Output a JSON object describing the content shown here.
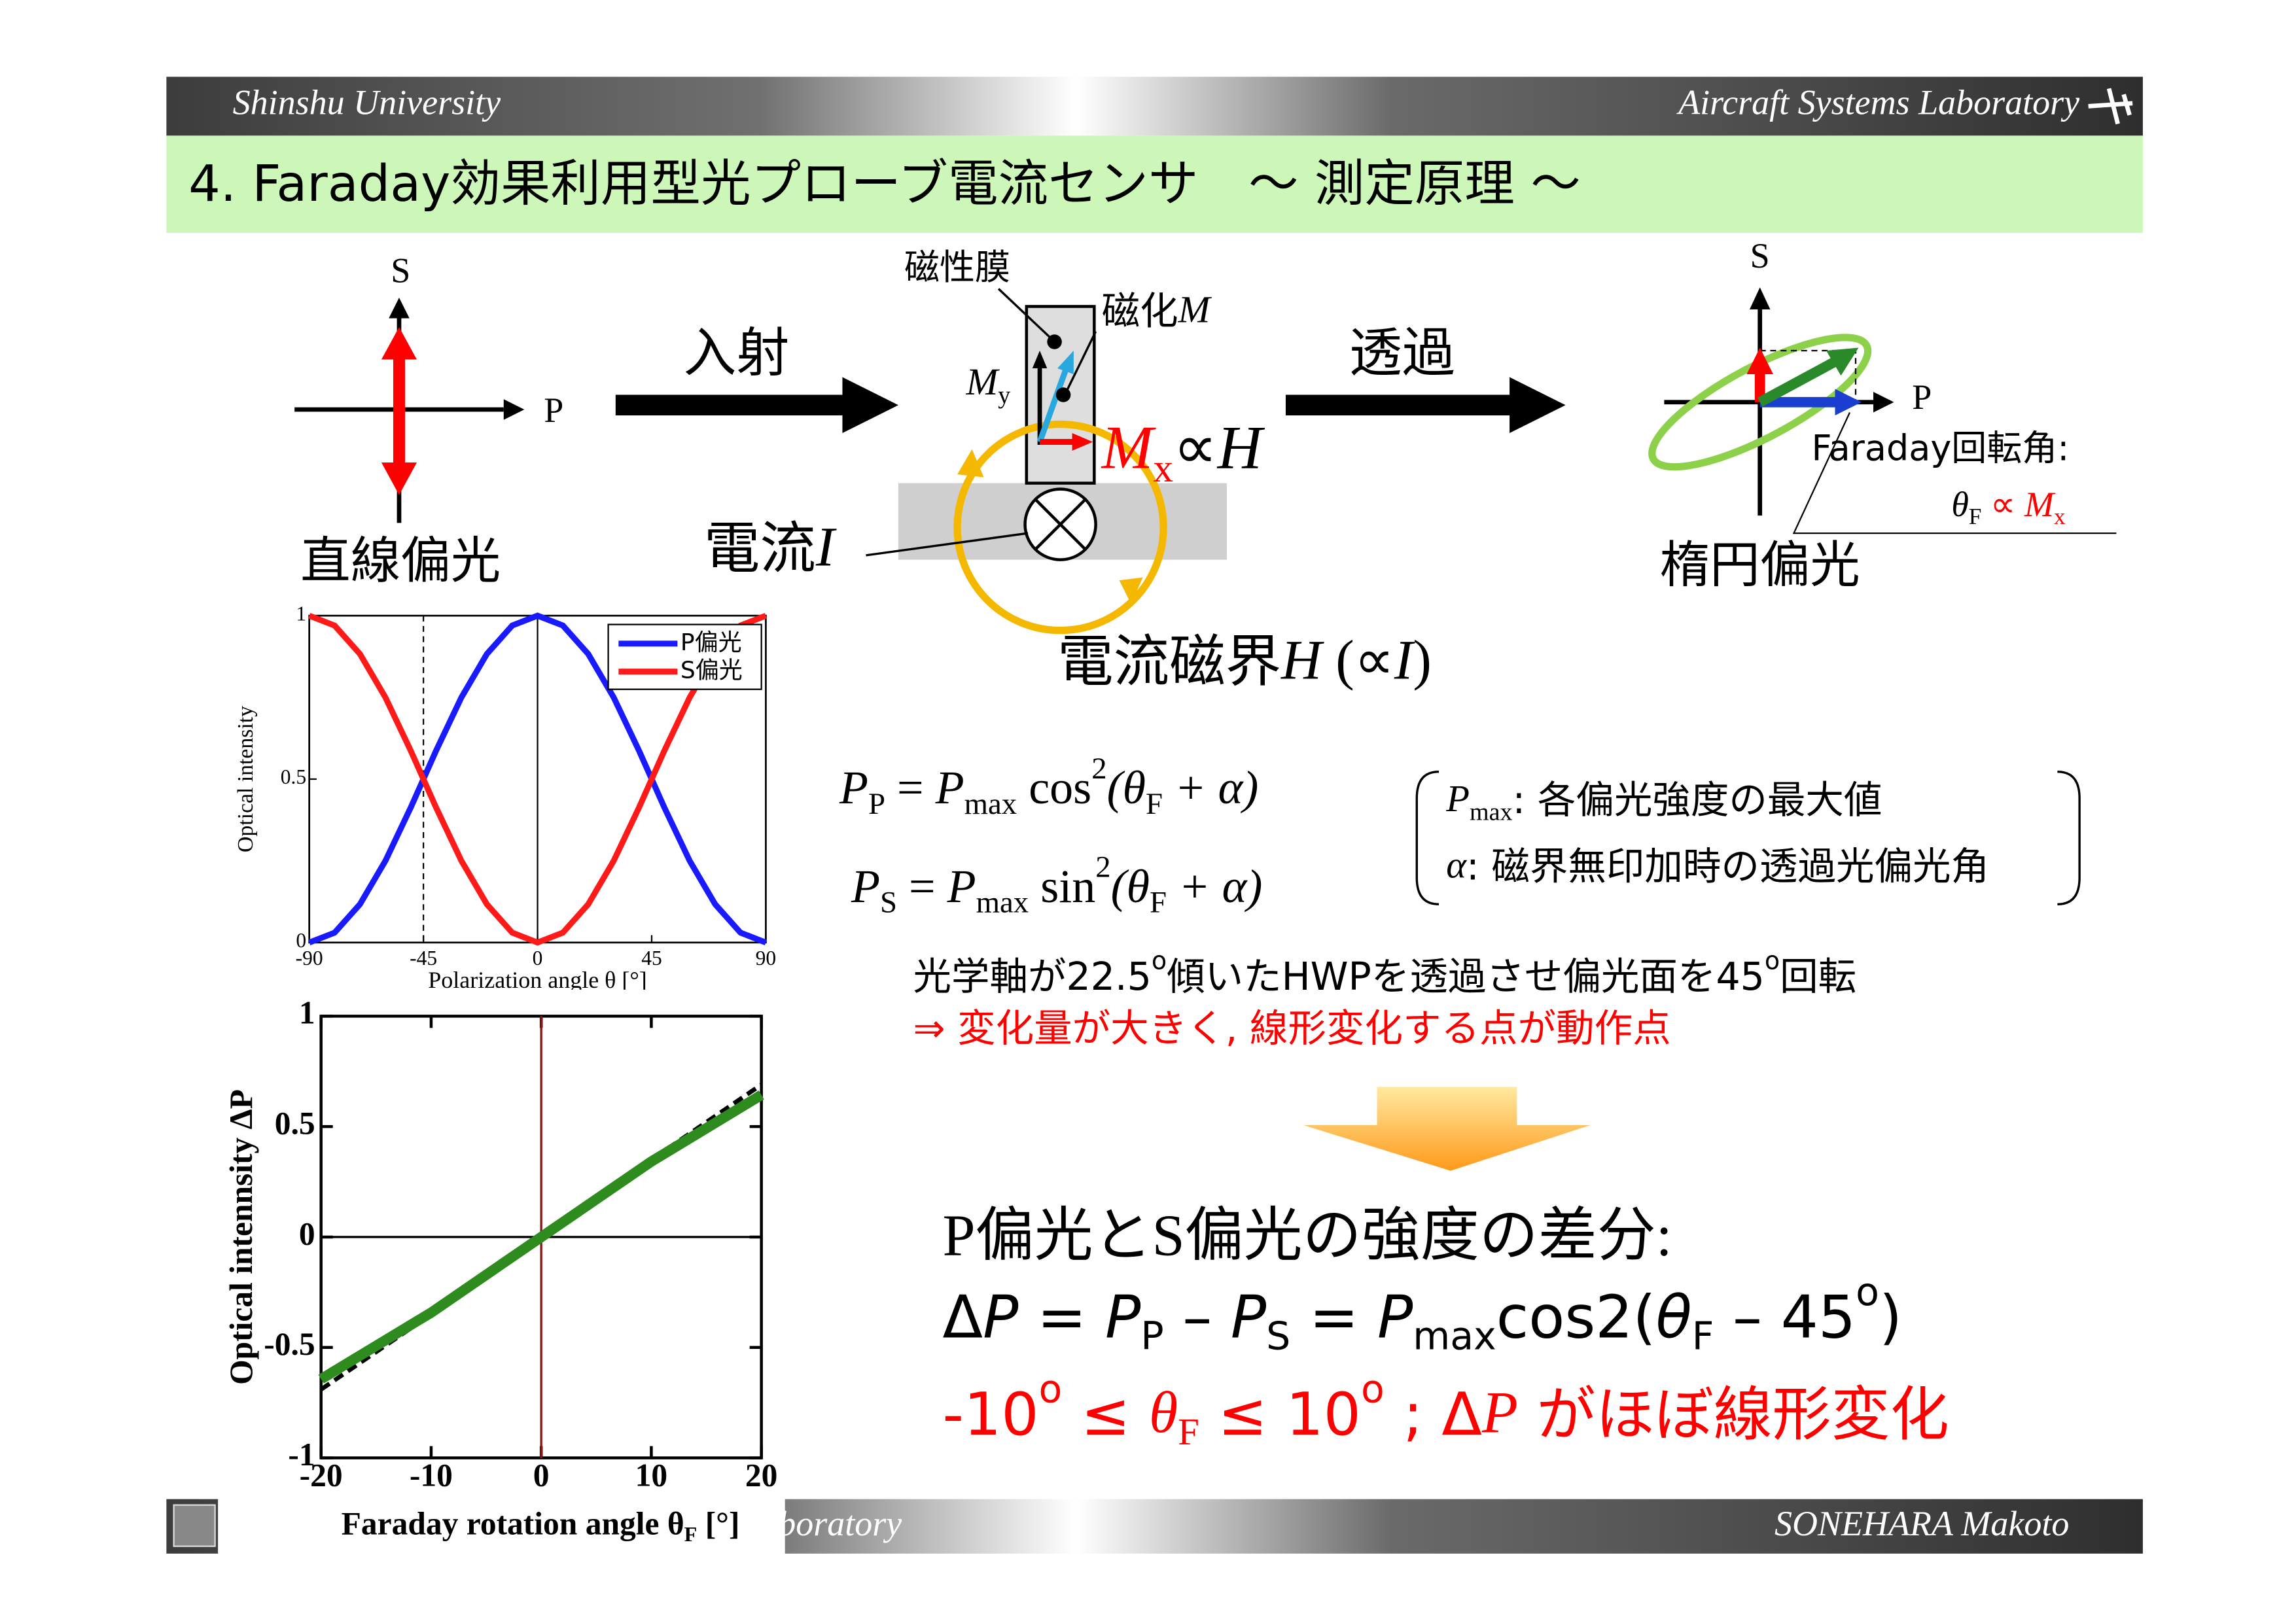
{
  "header": {
    "university": "Shinshu University",
    "lab": "Aircraft Systems Laboratory",
    "title": "4. Faraday効果利用型光プローブ電流センサ　～ 測定原理 ～"
  },
  "footer": {
    "lab": "Aircraft Systems Laboratory",
    "author": "SONEHARA Makoto"
  },
  "diagram": {
    "linear": {
      "s": "S",
      "p": "P",
      "caption": "直線偏光"
    },
    "incident": "入射",
    "film": "磁性膜",
    "magnetization": [
      "磁化",
      "M"
    ],
    "my": [
      "M",
      "y"
    ],
    "mx": [
      "M",
      "x",
      "∝",
      "H"
    ],
    "current": [
      "電流",
      "I"
    ],
    "transmit": "透過",
    "elliptic": {
      "s": "S",
      "p": "P",
      "caption": "楕円偏光",
      "rotation": "Faraday回転角:",
      "theta": [
        "θ",
        "F",
        " ∝ ",
        "M",
        "x"
      ]
    },
    "field": [
      "電流磁界",
      "H",
      " (∝",
      "I",
      ")"
    ]
  },
  "equations": {
    "pp": [
      "P",
      "P",
      " = ",
      "P",
      "max",
      " cos",
      "2",
      "(θ",
      "F",
      " + α)"
    ],
    "ps": [
      "P",
      "S",
      " = ",
      "P",
      "max",
      " sin",
      "2",
      "(θ",
      "F",
      " + α)"
    ],
    "notes": [
      [
        "P",
        "max",
        ": 各偏光強度の最大値"
      ],
      [
        "α",
        ": 磁界無印加時の透過光偏光角"
      ]
    ]
  },
  "note": [
    "光学軸が22.5",
    "o",
    "傾いたHWPを透過させ偏光面を45",
    "o",
    "回転"
  ],
  "operating": "⇒ 変化量が大きく, 線形変化する点が動作点",
  "summary": {
    "heading": "P偏光とS偏光の強度の差分:",
    "formula": [
      "Δ",
      "P",
      " = ",
      "P",
      "P",
      " – ",
      "P",
      "S",
      " = ",
      "P",
      "max",
      "cos2(",
      "θ",
      "F",
      " – 45",
      "o",
      ")"
    ],
    "range": [
      "-10",
      "o",
      " ≤ ",
      "θ",
      "F",
      " ≤ 10",
      "o",
      " ; ",
      "Δ",
      "P",
      " がほぼ線形変化"
    ]
  },
  "chart_data": [
    {
      "type": "line",
      "xlabel": "Polarization angle θ [°]",
      "ylabel": "Optical intensity",
      "x": [
        -90,
        -80,
        -70,
        -60,
        -50,
        -40,
        -30,
        -20,
        -10,
        0,
        10,
        20,
        30,
        40,
        50,
        60,
        70,
        80,
        90
      ],
      "series": [
        {
          "name": "P偏光",
          "color": "#1a1aff",
          "values": [
            0,
            0.03,
            0.117,
            0.25,
            0.413,
            0.587,
            0.75,
            0.883,
            0.97,
            1,
            0.97,
            0.883,
            0.75,
            0.587,
            0.413,
            0.25,
            0.117,
            0.03,
            0
          ]
        },
        {
          "name": "S偏光",
          "color": "#ff1a1a",
          "values": [
            1,
            0.97,
            0.883,
            0.75,
            0.587,
            0.413,
            0.25,
            0.117,
            0.03,
            0,
            0.03,
            0.117,
            0.25,
            0.413,
            0.587,
            0.75,
            0.883,
            0.97,
            1
          ]
        }
      ],
      "xlim": [
        -90,
        90
      ],
      "ylim": [
        0,
        1
      ],
      "xticks": [
        -90,
        -45,
        0,
        45,
        90
      ],
      "yticks": [
        0,
        0.5,
        1
      ]
    },
    {
      "type": "line",
      "xlabel": [
        "Faraday rotation angle θ",
        "F",
        " [°]"
      ],
      "ylabel": "Optical intennsity ΔP",
      "x": [
        -20,
        -10,
        0,
        10,
        20
      ],
      "series": [
        {
          "color": "#000000",
          "values": [
            -0.69,
            -0.35,
            0,
            0.35,
            0.69
          ]
        },
        {
          "color": "#2e8b1e",
          "values": [
            -0.643,
            -0.342,
            0,
            0.342,
            0.643
          ]
        }
      ],
      "xlim": [
        -20,
        20
      ],
      "ylim": [
        -1,
        1
      ],
      "xticks": [
        -20,
        -10,
        0,
        10,
        20
      ],
      "yticks": [
        -1,
        -0.5,
        0,
        0.5,
        1
      ]
    }
  ]
}
